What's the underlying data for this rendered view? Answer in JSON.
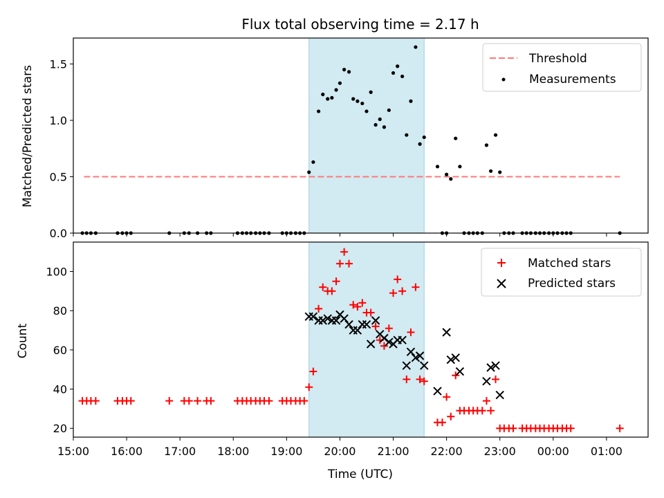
{
  "figure": {
    "title": "Flux total observing time = 2.17 h"
  },
  "chart_data": [
    {
      "type": "scatter",
      "ylabel": "Matched/Predicted stars",
      "ylim": [
        0,
        1.73
      ],
      "yticks": [
        0.0,
        0.5,
        1.0,
        1.5
      ],
      "ytick_labels": [
        "0.0",
        "0.5",
        "1.0",
        "1.5"
      ],
      "xlim": [
        15.0,
        25.78
      ],
      "shaded_region": [
        19.42,
        21.58
      ],
      "threshold": {
        "name": "Threshold",
        "value": 0.5,
        "x_range": [
          15.2,
          25.25
        ],
        "color": "#ff7777"
      },
      "series": [
        {
          "name": "Measurements",
          "color": "#000000",
          "x": [
            19.42,
            19.5,
            19.6,
            19.68,
            19.77,
            19.85,
            19.93,
            20.0,
            20.08,
            20.17,
            20.25,
            20.33,
            20.42,
            20.5,
            20.58,
            20.67,
            20.75,
            20.83,
            20.92,
            21.0,
            21.08,
            21.17,
            21.25,
            21.33,
            21.42,
            21.5,
            21.58,
            21.83,
            22.0,
            22.08,
            22.17,
            22.25,
            22.75,
            22.83,
            22.92,
            23.0
          ],
          "y": [
            0.54,
            0.63,
            1.08,
            1.23,
            1.19,
            1.2,
            1.27,
            1.33,
            1.45,
            1.43,
            1.19,
            1.17,
            1.15,
            1.08,
            1.25,
            0.96,
            1.01,
            0.94,
            1.09,
            1.42,
            1.48,
            1.39,
            0.87,
            1.17,
            1.65,
            0.79,
            0.85,
            0.59,
            0.52,
            0.48,
            0.84,
            0.59,
            0.78,
            0.55,
            0.87,
            0.54
          ],
          "zeros_x": [
            15.17,
            15.25,
            15.33,
            15.42,
            15.83,
            15.92,
            16.0,
            16.08,
            16.8,
            17.08,
            17.17,
            17.33,
            17.5,
            17.58,
            18.08,
            18.17,
            18.25,
            18.33,
            18.42,
            18.5,
            18.58,
            18.67,
            18.92,
            19.0,
            19.08,
            19.17,
            19.25,
            19.33,
            21.92,
            22.0,
            22.33,
            22.42,
            22.5,
            22.58,
            22.67,
            23.08,
            23.17,
            23.25,
            23.42,
            23.5,
            23.58,
            23.67,
            23.75,
            23.83,
            23.92,
            24.0,
            24.08,
            24.17,
            24.25,
            24.33,
            25.25
          ]
        }
      ]
    },
    {
      "type": "scatter",
      "xlabel": "Time (UTC)",
      "ylabel": "Count",
      "ylim": [
        15.5,
        115
      ],
      "yticks": [
        20,
        40,
        60,
        80,
        100
      ],
      "ytick_labels": [
        "20",
        "40",
        "60",
        "80",
        "100"
      ],
      "xlim": [
        15.0,
        25.78
      ],
      "xticks": [
        15,
        16,
        17,
        18,
        19,
        20,
        21,
        22,
        23,
        24,
        25
      ],
      "xtick_labels": [
        "15:00",
        "16:00",
        "17:00",
        "18:00",
        "19:00",
        "20:00",
        "21:00",
        "22:00",
        "23:00",
        "00:00",
        "01:00"
      ],
      "shaded_region": [
        19.42,
        21.58
      ],
      "series": [
        {
          "name": "Matched stars",
          "marker": "plus",
          "color": "#ff0000",
          "x": [
            15.17,
            15.25,
            15.33,
            15.42,
            15.83,
            15.92,
            16.0,
            16.08,
            16.8,
            17.08,
            17.17,
            17.33,
            17.5,
            17.58,
            18.08,
            18.17,
            18.25,
            18.33,
            18.42,
            18.5,
            18.58,
            18.67,
            18.92,
            19.0,
            19.08,
            19.17,
            19.25,
            19.33,
            19.42,
            19.5,
            19.6,
            19.68,
            19.77,
            19.85,
            19.93,
            20.0,
            20.08,
            20.17,
            20.25,
            20.33,
            20.42,
            20.5,
            20.58,
            20.67,
            20.75,
            20.83,
            20.92,
            21.0,
            21.08,
            21.17,
            21.25,
            21.33,
            21.42,
            21.5,
            21.58,
            21.83,
            21.92,
            22.0,
            22.08,
            22.17,
            22.25,
            22.33,
            22.42,
            22.5,
            22.58,
            22.67,
            22.75,
            22.83,
            22.92,
            23.0,
            23.08,
            23.17,
            23.25,
            23.42,
            23.5,
            23.58,
            23.67,
            23.75,
            23.83,
            23.92,
            24.0,
            24.08,
            24.17,
            24.25,
            24.33,
            25.25
          ],
          "y": [
            34,
            34,
            34,
            34,
            34,
            34,
            34,
            34,
            34,
            34,
            34,
            34,
            34,
            34,
            34,
            34,
            34,
            34,
            34,
            34,
            34,
            34,
            34,
            34,
            34,
            34,
            34,
            34,
            41,
            49,
            81,
            92,
            90,
            90,
            95,
            104,
            110,
            104,
            83,
            82,
            84,
            79,
            79,
            72,
            65,
            62,
            71,
            89,
            96,
            90,
            45,
            69,
            92,
            45,
            44,
            23,
            23,
            36,
            26,
            47,
            29,
            29,
            29,
            29,
            29,
            29,
            34,
            29,
            45,
            20,
            20,
            20,
            20,
            20,
            20,
            20,
            20,
            20,
            20,
            20,
            20,
            20,
            20,
            20,
            20,
            20
          ]
        },
        {
          "name": "Predicted stars",
          "marker": "x",
          "color": "#000000",
          "x": [
            19.42,
            19.5,
            19.6,
            19.68,
            19.77,
            19.85,
            19.93,
            20.0,
            20.08,
            20.17,
            20.25,
            20.33,
            20.42,
            20.5,
            20.58,
            20.67,
            20.75,
            20.83,
            20.92,
            21.0,
            21.08,
            21.17,
            21.25,
            21.33,
            21.42,
            21.5,
            21.58,
            21.83,
            22.0,
            22.08,
            22.17,
            22.25,
            22.75,
            22.83,
            22.92,
            23.0
          ],
          "y": [
            77,
            77,
            75,
            75,
            76,
            75,
            75,
            78,
            76,
            73,
            70,
            70,
            73,
            73,
            63,
            75,
            68,
            66,
            64,
            63,
            65,
            65,
            52,
            59,
            56,
            57,
            52,
            39,
            69,
            55,
            56,
            49,
            44,
            51,
            52,
            37
          ]
        }
      ]
    }
  ]
}
